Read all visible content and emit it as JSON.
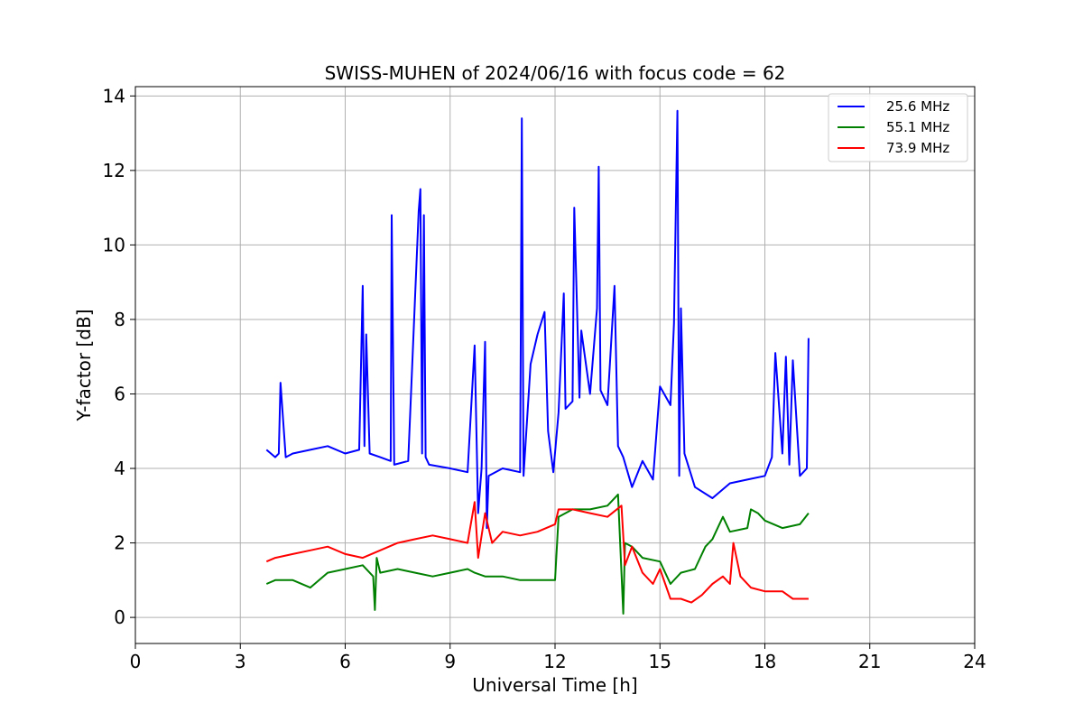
{
  "chart_data": {
    "type": "line",
    "title": "SWISS-MUHEN of 2024/06/16 with focus code = 62",
    "xlabel": "Universal Time [h]",
    "ylabel": "Y-factor [dB]",
    "xlim": [
      0,
      24
    ],
    "ylim": [
      -0.7,
      14.25
    ],
    "xticks": [
      0,
      3,
      6,
      9,
      12,
      15,
      18,
      21,
      24
    ],
    "yticks": [
      0,
      2,
      4,
      6,
      8,
      10,
      12,
      14
    ],
    "grid": true,
    "legend_position": "top-right",
    "series": [
      {
        "name": "25.6 MHz",
        "color": "#0000ff",
        "x": [
          3.75,
          4.0,
          4.1,
          4.15,
          4.3,
          4.5,
          5.0,
          5.5,
          6.0,
          6.4,
          6.5,
          6.55,
          6.6,
          6.7,
          7.0,
          7.3,
          7.33,
          7.4,
          7.8,
          8.1,
          8.15,
          8.2,
          8.25,
          8.3,
          8.4,
          9.0,
          9.5,
          9.7,
          9.8,
          9.9,
          10.0,
          10.05,
          10.1,
          10.5,
          11.0,
          11.05,
          11.1,
          11.3,
          11.5,
          11.7,
          11.8,
          11.95,
          12.1,
          12.25,
          12.3,
          12.5,
          12.55,
          12.7,
          12.75,
          13.0,
          13.2,
          13.25,
          13.3,
          13.5,
          13.7,
          13.8,
          13.95,
          14.2,
          14.5,
          14.8,
          15.0,
          15.3,
          15.4,
          15.5,
          15.55,
          15.6,
          15.7,
          16.0,
          16.5,
          17.0,
          17.5,
          18.0,
          18.2,
          18.3,
          18.5,
          18.6,
          18.7,
          18.8,
          19.0,
          19.2,
          19.25
        ],
        "values": [
          4.5,
          4.3,
          4.4,
          6.3,
          4.3,
          4.4,
          4.5,
          4.6,
          4.4,
          4.5,
          8.9,
          4.6,
          7.6,
          4.4,
          4.3,
          4.2,
          10.8,
          4.1,
          4.2,
          10.9,
          11.5,
          4.4,
          10.8,
          4.3,
          4.1,
          4.0,
          3.9,
          7.3,
          2.8,
          4.0,
          7.4,
          2.4,
          3.8,
          4.0,
          3.9,
          13.4,
          3.8,
          6.8,
          7.6,
          8.2,
          5.0,
          3.9,
          5.5,
          8.7,
          5.6,
          5.8,
          11.0,
          5.9,
          7.7,
          6.0,
          8.3,
          12.1,
          6.1,
          5.7,
          8.9,
          4.6,
          4.3,
          3.5,
          4.2,
          3.7,
          6.2,
          5.7,
          7.9,
          13.6,
          3.8,
          8.3,
          4.4,
          3.5,
          3.2,
          3.6,
          3.7,
          3.8,
          4.3,
          7.1,
          4.4,
          7.0,
          4.1,
          6.9,
          3.8,
          4.0,
          7.5
        ]
      },
      {
        "name": "55.1 MHz",
        "color": "#008000",
        "x": [
          3.75,
          4.0,
          4.5,
          5.0,
          5.5,
          6.0,
          6.5,
          6.8,
          6.85,
          6.9,
          7.0,
          7.5,
          8.0,
          8.5,
          9.0,
          9.5,
          9.7,
          10.0,
          10.5,
          11.0,
          11.5,
          12.0,
          12.1,
          12.5,
          13.0,
          13.5,
          13.8,
          13.95,
          14.0,
          14.2,
          14.5,
          15.0,
          15.3,
          15.6,
          16.0,
          16.3,
          16.5,
          16.7,
          16.8,
          17.0,
          17.5,
          17.6,
          17.8,
          18.0,
          18.5,
          19.0,
          19.25
        ],
        "values": [
          0.9,
          1.0,
          1.0,
          0.8,
          1.2,
          1.3,
          1.4,
          1.1,
          0.2,
          1.6,
          1.2,
          1.3,
          1.2,
          1.1,
          1.2,
          1.3,
          1.2,
          1.1,
          1.1,
          1.0,
          1.0,
          1.0,
          2.7,
          2.9,
          2.9,
          3.0,
          3.3,
          0.1,
          2.0,
          1.9,
          1.6,
          1.5,
          0.9,
          1.2,
          1.3,
          1.9,
          2.1,
          2.5,
          2.7,
          2.3,
          2.4,
          2.9,
          2.8,
          2.6,
          2.4,
          2.5,
          2.8
        ]
      },
      {
        "name": "73.9 MHz",
        "color": "#ff0000",
        "x": [
          3.75,
          4.0,
          4.5,
          5.0,
          5.5,
          6.0,
          6.5,
          7.0,
          7.5,
          8.0,
          8.5,
          9.0,
          9.5,
          9.7,
          9.8,
          10.0,
          10.2,
          10.5,
          11.0,
          11.5,
          12.0,
          12.1,
          12.5,
          13.0,
          13.5,
          13.9,
          14.0,
          14.2,
          14.5,
          14.8,
          15.0,
          15.3,
          15.6,
          15.9,
          16.2,
          16.5,
          16.8,
          17.0,
          17.1,
          17.3,
          17.6,
          18.0,
          18.5,
          18.8,
          19.0,
          19.25
        ],
        "values": [
          1.5,
          1.6,
          1.7,
          1.8,
          1.9,
          1.7,
          1.6,
          1.8,
          2.0,
          2.1,
          2.2,
          2.1,
          2.0,
          3.1,
          1.6,
          2.8,
          2.0,
          2.3,
          2.2,
          2.3,
          2.5,
          2.9,
          2.9,
          2.8,
          2.7,
          3.0,
          1.4,
          1.9,
          1.2,
          0.9,
          1.3,
          0.5,
          0.5,
          0.4,
          0.6,
          0.9,
          1.1,
          0.9,
          2.0,
          1.1,
          0.8,
          0.7,
          0.7,
          0.5,
          0.5,
          0.5
        ]
      }
    ]
  }
}
